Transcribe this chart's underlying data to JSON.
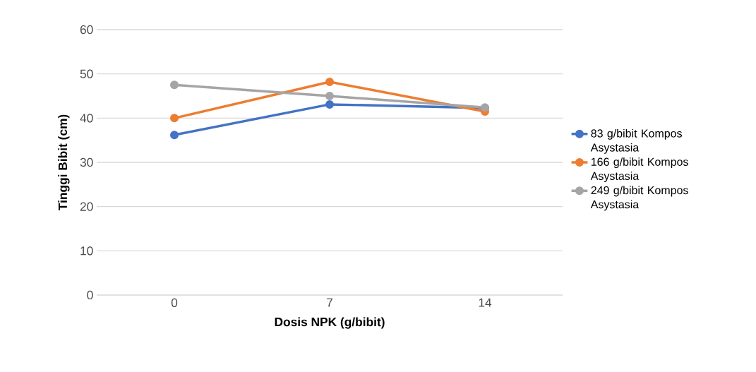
{
  "chart_data": {
    "type": "line",
    "xlabel": "Dosis NPK (g/bibit)",
    "ylabel": "Tinggi Bibit (cm)",
    "categories": [
      "0",
      "7",
      "14"
    ],
    "series": [
      {
        "name": "83 g/bibit Kompos Asystasia",
        "color": "#4472c4",
        "values": [
          36.2,
          43.1,
          42.3
        ]
      },
      {
        "name": "166 g/bibit Kompos Asystasia",
        "color": "#ed7d31",
        "values": [
          40.0,
          48.2,
          41.5
        ]
      },
      {
        "name": "249 g/bibit Kompos Asystasia",
        "color": "#a5a5a5",
        "values": [
          47.5,
          45.0,
          42.4
        ]
      }
    ],
    "ylim": [
      0,
      60
    ],
    "yticks": [
      0,
      10,
      20,
      30,
      40,
      50,
      60
    ],
    "grid": "y",
    "legend": "right",
    "marker": "circle",
    "line_style": "solid"
  }
}
